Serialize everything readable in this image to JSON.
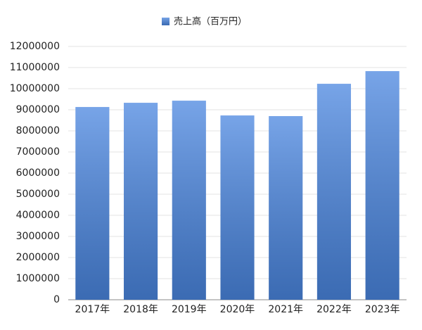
{
  "chart_data": {
    "type": "bar",
    "categories": [
      "2017年",
      "2018年",
      "2019年",
      "2020年",
      "2021年",
      "2022年",
      "2023年"
    ],
    "series": [
      {
        "name": "売上高（百万円）",
        "color": "#4a86e0",
        "values": [
          9130000,
          9330000,
          9430000,
          8730000,
          8700000,
          10230000,
          10830000
        ]
      }
    ],
    "ylim": [
      0,
      12000000
    ],
    "yticks": [
      0,
      1000000,
      2000000,
      3000000,
      4000000,
      5000000,
      6000000,
      7000000,
      8000000,
      9000000,
      10000000,
      11000000,
      12000000
    ],
    "grid": true,
    "legend": "top"
  }
}
